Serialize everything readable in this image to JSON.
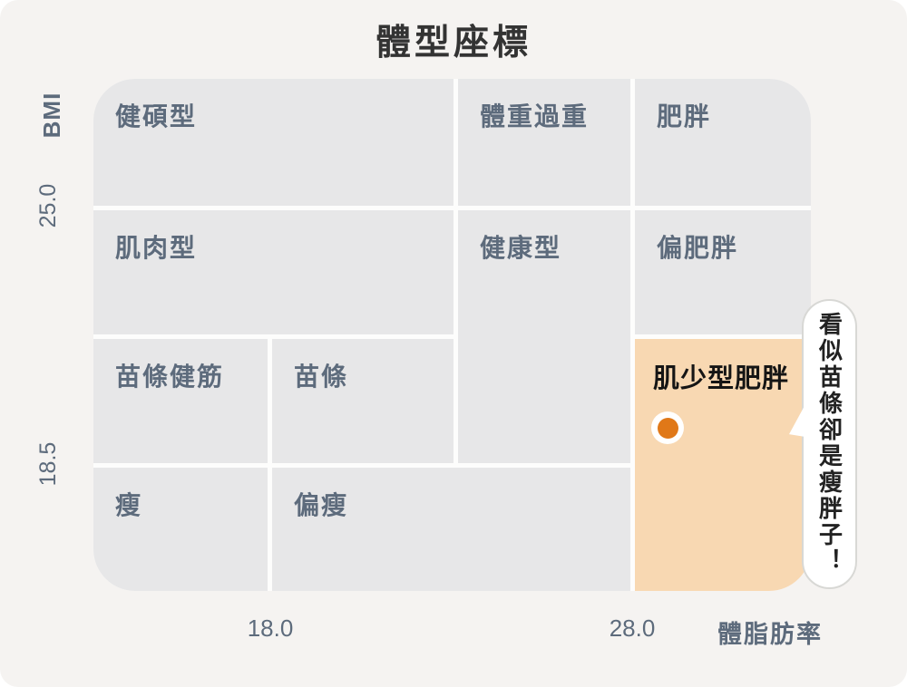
{
  "title": "體型座標",
  "axes": {
    "y_label": "BMI",
    "y_ticks": [
      "25.0",
      "18.5"
    ],
    "x_ticks": [
      "18.0",
      "28.0"
    ],
    "x_label": "體脂肪率"
  },
  "cells": [
    {
      "id": "athletic",
      "label": "健碩型"
    },
    {
      "id": "overweight",
      "label": "體重過重"
    },
    {
      "id": "obese",
      "label": "肥胖"
    },
    {
      "id": "muscular",
      "label": "肌肉型"
    },
    {
      "id": "healthy",
      "label": "健康型"
    },
    {
      "id": "slightly-obese",
      "label": "偏肥胖"
    },
    {
      "id": "slim-fit",
      "label": "苗條健筋"
    },
    {
      "id": "slim",
      "label": "苗條"
    },
    {
      "id": "sarcopenic-obesity",
      "label": "肌少型肥胖",
      "highlighted": true
    },
    {
      "id": "thin",
      "label": "瘦"
    },
    {
      "id": "slightly-thin",
      "label": "偏瘦"
    }
  ],
  "annotation": {
    "bubble_text": "看似苗條卻是瘦胖子！"
  },
  "marker": {
    "region": "肌少型肥胖",
    "color": "#e07818"
  },
  "colors": {
    "page_bg": "#f5f3f1",
    "cell_gray": "#e7e7e8",
    "cell_orange": "#f8d8b2",
    "dot_orange": "#e07818",
    "label_slate": "#5d6b7c",
    "dark_text": "#151515",
    "bubble_border": "#d8d8d5"
  },
  "chart_data": {
    "type": "heatmap",
    "title": "體型座標",
    "xlabel": "體脂肪率",
    "ylabel": "BMI",
    "x_tick_values": [
      18.0,
      28.0
    ],
    "y_tick_values": [
      25.0,
      18.5
    ],
    "grid_columns": 4,
    "grid_rows": 4,
    "legend": "none",
    "regions": [
      {
        "label": "健碩型",
        "col": 1,
        "row": 1,
        "col_span": 2,
        "row_span": 1,
        "color": "#e7e7e8"
      },
      {
        "label": "體重過重",
        "col": 3,
        "row": 1,
        "col_span": 1,
        "row_span": 1,
        "color": "#e7e7e8"
      },
      {
        "label": "肥胖",
        "col": 4,
        "row": 1,
        "col_span": 1,
        "row_span": 1,
        "color": "#e7e7e8"
      },
      {
        "label": "肌肉型",
        "col": 1,
        "row": 2,
        "col_span": 2,
        "row_span": 1,
        "color": "#e7e7e8"
      },
      {
        "label": "健康型",
        "col": 3,
        "row": 2,
        "col_span": 1,
        "row_span": 2,
        "color": "#e7e7e8"
      },
      {
        "label": "偏肥胖",
        "col": 4,
        "row": 2,
        "col_span": 1,
        "row_span": 1,
        "color": "#e7e7e8"
      },
      {
        "label": "苗條健筋",
        "col": 1,
        "row": 3,
        "col_span": 1,
        "row_span": 1,
        "color": "#e7e7e8"
      },
      {
        "label": "苗條",
        "col": 2,
        "row": 3,
        "col_span": 1,
        "row_span": 1,
        "color": "#e7e7e8"
      },
      {
        "label": "肌少型肥胖",
        "col": 4,
        "row": 3,
        "col_span": 1,
        "row_span": 2,
        "color": "#f8d8b2"
      },
      {
        "label": "瘦",
        "col": 1,
        "row": 4,
        "col_span": 1,
        "row_span": 1,
        "color": "#e7e7e8"
      },
      {
        "label": "偏瘦",
        "col": 2,
        "row": 4,
        "col_span": 2,
        "row_span": 1,
        "color": "#e7e7e8"
      }
    ],
    "marker": {
      "region": "肌少型肥胖",
      "color": "#e07818"
    },
    "annotation": "看似苗條卻是瘦胖子！"
  }
}
